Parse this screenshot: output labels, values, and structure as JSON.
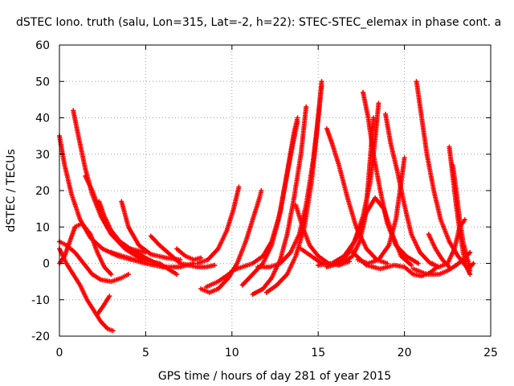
{
  "chart_data": {
    "type": "scatter",
    "title": "dSTEC Iono. truth (salu, Lon=315, Lat=-2, h=22): STEC-STEC_elemax in phase cont. a",
    "xlabel": "GPS time / hours of day 281 of year 2015",
    "ylabel": "dSTEC  / TECUs",
    "xlim": [
      0,
      25
    ],
    "ylim": [
      -20,
      60
    ],
    "xticks": [
      0,
      5,
      10,
      15,
      20,
      25
    ],
    "yticks": [
      -20,
      -10,
      0,
      10,
      20,
      30,
      40,
      50,
      60
    ],
    "xtick_labels": [
      "0",
      "5",
      "10",
      "15",
      "20",
      "25"
    ],
    "ytick_labels": [
      "-20",
      "-10",
      "0",
      "10",
      "20",
      "30",
      "40",
      "50",
      "60"
    ],
    "grid": true,
    "marker": "plus",
    "color": "#ff0000",
    "series": [
      {
        "points": [
          [
            0.0,
            35
          ],
          [
            0.3,
            27
          ],
          [
            0.7,
            19
          ],
          [
            1.2,
            12
          ],
          [
            1.8,
            7
          ],
          [
            2.5,
            4
          ],
          [
            3.4,
            2
          ],
          [
            4.2,
            1
          ],
          [
            5.0,
            0
          ]
        ]
      },
      {
        "points": [
          [
            0.8,
            42
          ],
          [
            1.1,
            35
          ],
          [
            1.5,
            26
          ],
          [
            1.9,
            19
          ],
          [
            2.4,
            13
          ],
          [
            3.0,
            8
          ],
          [
            3.8,
            4
          ],
          [
            4.8,
            1
          ],
          [
            5.8,
            0
          ],
          [
            6.8,
            -3
          ]
        ]
      },
      {
        "points": [
          [
            1.5,
            24
          ],
          [
            1.9,
            20
          ],
          [
            2.3,
            15
          ],
          [
            2.8,
            10
          ],
          [
            3.5,
            6
          ],
          [
            4.4,
            3
          ],
          [
            5.2,
            1
          ],
          [
            6.0,
            -1
          ]
        ]
      },
      {
        "points": [
          [
            0.0,
            6
          ],
          [
            0.4,
            5
          ],
          [
            0.9,
            3
          ],
          [
            1.4,
            0
          ],
          [
            1.9,
            -3
          ],
          [
            2.4,
            -4.5
          ],
          [
            3.0,
            -5
          ],
          [
            3.6,
            -4
          ],
          [
            4.0,
            -3
          ]
        ]
      },
      {
        "points": [
          [
            0.0,
            0
          ],
          [
            0.3,
            2
          ],
          [
            0.6,
            6
          ],
          [
            0.9,
            10
          ],
          [
            1.3,
            11
          ],
          [
            1.8,
            8
          ],
          [
            2.2,
            3
          ],
          [
            2.6,
            -1
          ],
          [
            3.0,
            -3
          ]
        ]
      },
      {
        "points": [
          [
            0.0,
            4
          ],
          [
            0.4,
            0
          ],
          [
            0.8,
            -3
          ],
          [
            1.2,
            -6
          ],
          [
            1.6,
            -10
          ],
          [
            2.0,
            -13
          ],
          [
            2.4,
            -16
          ],
          [
            2.8,
            -18
          ],
          [
            3.1,
            -18.5
          ]
        ]
      },
      {
        "points": [
          [
            2.2,
            -14
          ],
          [
            2.5,
            -12
          ],
          [
            2.9,
            -9
          ]
        ]
      },
      {
        "points": [
          [
            2.3,
            17
          ],
          [
            2.6,
            13
          ],
          [
            3.0,
            9
          ],
          [
            3.5,
            6
          ],
          [
            4.1,
            4
          ],
          [
            5.0,
            3
          ]
        ]
      },
      {
        "points": [
          [
            3.6,
            17
          ],
          [
            4.0,
            10
          ],
          [
            4.6,
            5
          ],
          [
            5.3,
            2.5
          ],
          [
            6.2,
            1.5
          ],
          [
            7.0,
            1
          ]
        ]
      },
      {
        "points": [
          [
            5.3,
            7.5
          ],
          [
            5.8,
            5
          ],
          [
            6.4,
            2.5
          ],
          [
            7.0,
            0
          ]
        ]
      },
      {
        "points": [
          [
            3.0,
            3
          ],
          [
            4.0,
            1.5
          ],
          [
            5.0,
            0
          ],
          [
            6.0,
            -1
          ],
          [
            7.0,
            -1
          ],
          [
            7.8,
            0
          ]
        ]
      },
      {
        "points": [
          [
            6.8,
            4
          ],
          [
            7.3,
            2
          ],
          [
            7.8,
            1
          ],
          [
            8.2,
            1.5
          ]
        ]
      },
      {
        "points": [
          [
            8.2,
            -7
          ],
          [
            8.7,
            -8
          ],
          [
            9.2,
            -7
          ],
          [
            9.8,
            -4
          ],
          [
            10.3,
            0
          ],
          [
            10.8,
            6
          ],
          [
            11.2,
            12
          ],
          [
            11.6,
            18
          ],
          [
            11.7,
            20
          ]
        ]
      },
      {
        "points": [
          [
            8.0,
            0
          ],
          [
            8.6,
            1
          ],
          [
            9.2,
            4
          ],
          [
            9.7,
            9
          ],
          [
            10.1,
            15
          ],
          [
            10.4,
            21
          ]
        ]
      },
      {
        "points": [
          [
            7.0,
            0
          ],
          [
            7.5,
            -0.5
          ],
          [
            8.0,
            -1
          ],
          [
            8.5,
            -1
          ],
          [
            9.0,
            -0.5
          ]
        ]
      },
      {
        "points": [
          [
            11.2,
            -8.5
          ],
          [
            11.8,
            -7
          ],
          [
            12.3,
            -4
          ],
          [
            12.8,
            1
          ],
          [
            13.2,
            8
          ],
          [
            13.6,
            18
          ],
          [
            14.0,
            30
          ],
          [
            14.3,
            43
          ]
        ]
      },
      {
        "points": [
          [
            10.6,
            -6
          ],
          [
            11.2,
            -3
          ],
          [
            11.8,
            0
          ],
          [
            12.3,
            5
          ],
          [
            12.7,
            12
          ],
          [
            13.1,
            22
          ],
          [
            13.5,
            32
          ],
          [
            13.8,
            39
          ]
        ]
      },
      {
        "points": [
          [
            10.0,
            -2
          ],
          [
            10.6,
            -1
          ],
          [
            11.2,
            0
          ],
          [
            11.8,
            2
          ],
          [
            12.3,
            6
          ],
          [
            12.8,
            14
          ],
          [
            13.2,
            25
          ],
          [
            13.6,
            36
          ],
          [
            13.8,
            40
          ]
        ]
      },
      {
        "points": [
          [
            11.5,
            -1
          ],
          [
            12.2,
            -1
          ],
          [
            12.8,
            0
          ],
          [
            13.4,
            3
          ],
          [
            13.9,
            8
          ],
          [
            14.3,
            16
          ],
          [
            14.7,
            28
          ],
          [
            15.0,
            40
          ],
          [
            15.2,
            49
          ]
        ]
      },
      {
        "points": [
          [
            12.0,
            -8
          ],
          [
            12.6,
            -6
          ],
          [
            13.2,
            -3
          ],
          [
            13.7,
            2
          ],
          [
            14.2,
            10
          ],
          [
            14.6,
            22
          ],
          [
            14.9,
            35
          ],
          [
            15.2,
            50
          ]
        ]
      },
      {
        "points": [
          [
            13.7,
            16
          ],
          [
            14.1,
            10
          ],
          [
            14.5,
            5
          ],
          [
            15.0,
            2
          ],
          [
            15.6,
            0
          ],
          [
            16.2,
            -0.5
          ],
          [
            16.8,
            0.5
          ]
        ]
      },
      {
        "points": [
          [
            14.0,
            4
          ],
          [
            14.6,
            2
          ],
          [
            15.2,
            0
          ],
          [
            15.8,
            -0.5
          ],
          [
            16.4,
            0
          ],
          [
            17.0,
            2
          ],
          [
            17.4,
            6
          ],
          [
            17.7,
            12
          ],
          [
            17.9,
            22
          ],
          [
            18.1,
            34
          ],
          [
            18.2,
            40
          ]
        ]
      },
      {
        "points": [
          [
            15.5,
            37
          ],
          [
            15.8,
            33
          ],
          [
            16.2,
            27
          ],
          [
            16.7,
            18
          ],
          [
            17.2,
            10
          ],
          [
            17.8,
            4
          ],
          [
            18.4,
            1
          ],
          [
            19.0,
            0
          ]
        ]
      },
      {
        "points": [
          [
            17.6,
            47
          ],
          [
            17.9,
            40
          ],
          [
            18.2,
            30
          ],
          [
            18.6,
            20
          ],
          [
            19.0,
            11
          ],
          [
            19.5,
            5
          ],
          [
            20.1,
            2
          ],
          [
            20.8,
            0
          ]
        ]
      },
      {
        "points": [
          [
            15.0,
            -0.5
          ],
          [
            15.8,
            0
          ],
          [
            16.5,
            2
          ],
          [
            17.1,
            6
          ],
          [
            17.6,
            13
          ],
          [
            18.0,
            22
          ],
          [
            18.3,
            34
          ],
          [
            18.5,
            44
          ]
        ]
      },
      {
        "points": [
          [
            15.5,
            -1
          ],
          [
            16.2,
            0
          ],
          [
            16.8,
            3
          ],
          [
            17.3,
            8
          ],
          [
            17.8,
            14
          ],
          [
            18.3,
            18
          ],
          [
            18.8,
            15
          ],
          [
            19.3,
            8
          ],
          [
            19.8,
            2
          ],
          [
            20.4,
            -0.5
          ]
        ]
      },
      {
        "points": [
          [
            17.3,
            1
          ],
          [
            17.9,
            0
          ],
          [
            18.5,
            1
          ],
          [
            19.1,
            5
          ],
          [
            19.5,
            12
          ],
          [
            19.8,
            22
          ],
          [
            20.0,
            29
          ]
        ]
      },
      {
        "points": [
          [
            18.9,
            41
          ],
          [
            19.2,
            33
          ],
          [
            19.6,
            25
          ],
          [
            20.0,
            16
          ],
          [
            20.4,
            8
          ],
          [
            20.9,
            3
          ],
          [
            21.5,
            0
          ],
          [
            22.0,
            -1
          ]
        ]
      },
      {
        "points": [
          [
            17.0,
            3
          ],
          [
            17.8,
            -0.5
          ],
          [
            18.6,
            -1.5
          ],
          [
            19.4,
            -0.5
          ],
          [
            20.0,
            -1
          ],
          [
            20.5,
            -3
          ],
          [
            21.0,
            -3.5
          ],
          [
            21.5,
            -2.5
          ],
          [
            21.9,
            -1
          ]
        ]
      },
      {
        "points": [
          [
            20.7,
            50
          ],
          [
            21.0,
            40
          ],
          [
            21.3,
            30
          ],
          [
            21.7,
            20
          ],
          [
            22.1,
            12
          ],
          [
            22.6,
            6
          ],
          [
            23.1,
            2
          ],
          [
            23.6,
            -1
          ]
        ]
      },
      {
        "points": [
          [
            21.6,
            0
          ],
          [
            22.0,
            -1
          ],
          [
            22.5,
            0
          ],
          [
            22.9,
            4
          ],
          [
            23.2,
            10
          ],
          [
            23.5,
            12
          ]
        ]
      },
      {
        "points": [
          [
            22.6,
            32
          ],
          [
            22.8,
            24
          ],
          [
            23.0,
            16
          ],
          [
            23.2,
            9
          ],
          [
            23.4,
            3
          ],
          [
            23.6,
            -1
          ],
          [
            23.8,
            -3
          ]
        ]
      },
      {
        "points": [
          [
            22.8,
            27
          ],
          [
            23.0,
            20
          ],
          [
            23.2,
            12
          ],
          [
            23.4,
            6
          ],
          [
            23.6,
            2
          ],
          [
            23.8,
            -2
          ]
        ]
      },
      {
        "points": [
          [
            20.5,
            -1.5
          ],
          [
            21.3,
            -3
          ],
          [
            22.0,
            -3
          ],
          [
            22.5,
            -2
          ],
          [
            23.0,
            -0.5
          ],
          [
            23.4,
            1
          ],
          [
            23.8,
            3
          ]
        ]
      },
      {
        "points": [
          [
            21.4,
            8
          ],
          [
            21.8,
            4
          ],
          [
            22.2,
            1
          ],
          [
            22.6,
            -1
          ]
        ]
      },
      {
        "points": [
          [
            23.4,
            5
          ],
          [
            23.6,
            2
          ],
          [
            23.8,
            -1
          ],
          [
            24.0,
            0
          ]
        ]
      },
      {
        "points": [
          [
            8.5,
            -6.5
          ],
          [
            9.2,
            -5
          ],
          [
            9.8,
            -3
          ],
          [
            10.3,
            -1
          ]
        ]
      }
    ]
  }
}
